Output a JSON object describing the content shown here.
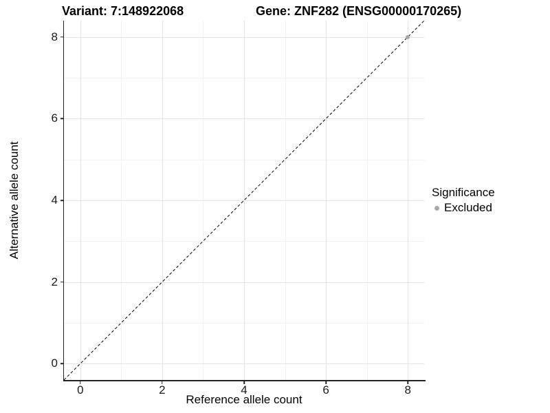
{
  "chart_data": {
    "type": "scatter",
    "titles": {
      "variant": "Variant: 7:148922068",
      "gene": "Gene: ZNF282 (ENSG00000170265)"
    },
    "xlabel": "Reference allele count",
    "ylabel": "Alternative allele count",
    "xlim": [
      -0.4,
      8.4
    ],
    "ylim": [
      -0.4,
      8.4
    ],
    "x_major_ticks": [
      0,
      2,
      4,
      6,
      8
    ],
    "y_major_ticks": [
      0,
      2,
      4,
      6,
      8
    ],
    "x_minor_gridlines": [
      1,
      3,
      5,
      7
    ],
    "y_minor_gridlines": [
      1,
      3,
      5,
      7
    ],
    "grid": "major+minor",
    "reference_line": {
      "type": "identity",
      "style": "dashed",
      "color": "#000000",
      "from": [
        -0.4,
        -0.4
      ],
      "to": [
        8.4,
        8.4
      ]
    },
    "series": [
      {
        "name": "Excluded",
        "color": "#a9a9a9",
        "points": [
          {
            "x": 8,
            "y": 8
          }
        ]
      }
    ],
    "legend": {
      "title": "Significance",
      "position": "right",
      "items": [
        {
          "label": "Excluded",
          "color": "#a9a9a9"
        }
      ]
    }
  },
  "colors": {
    "major_grid": "#e3e3e3",
    "minor_grid": "#f1f1f1",
    "axis_line": "#222222",
    "background": "#ffffff"
  }
}
